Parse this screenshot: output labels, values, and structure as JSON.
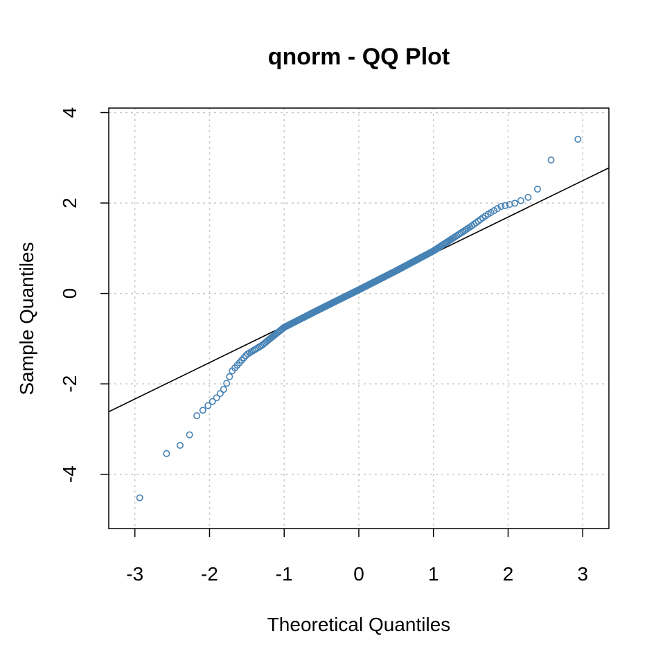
{
  "chart_data": {
    "type": "scatter",
    "title": "qnorm - QQ Plot",
    "xlabel": "Theoretical Quantiles",
    "ylabel": "Sample Quantiles",
    "xlim": [
      -3.35,
      3.35
    ],
    "ylim": [
      -5.2,
      4.1
    ],
    "xticks": [
      -3,
      -2,
      -1,
      0,
      1,
      2,
      3
    ],
    "yticks": [
      -4,
      -2,
      0,
      2,
      4
    ],
    "grid": true,
    "point_color": "#4682B4",
    "line_color": "#000000",
    "reference_line": {
      "intercept": 0.08,
      "slope": 0.805
    },
    "sample_size": 300,
    "profile": {
      "x": [
        -3.1,
        -2.75,
        -2.6,
        -2.45,
        -2.35,
        -2.25,
        -2.2,
        -2.1,
        -2.0,
        -1.9,
        -1.8,
        -1.7,
        -1.5,
        -1.3,
        -1.0,
        -0.5,
        0,
        0.5,
        1.0,
        1.5,
        1.7,
        1.9,
        2.1,
        2.3,
        2.45,
        2.57,
        2.75,
        3.1
      ],
      "y": [
        -4.85,
        -4.15,
        -3.55,
        -3.5,
        -3.25,
        -3.1,
        -2.75,
        -2.6,
        -2.45,
        -2.3,
        -2.1,
        -1.72,
        -1.35,
        -1.15,
        -0.75,
        -0.33,
        0.08,
        0.5,
        0.94,
        1.48,
        1.72,
        1.92,
        2.0,
        2.15,
        2.4,
        2.95,
        2.97,
        3.8
      ]
    }
  }
}
